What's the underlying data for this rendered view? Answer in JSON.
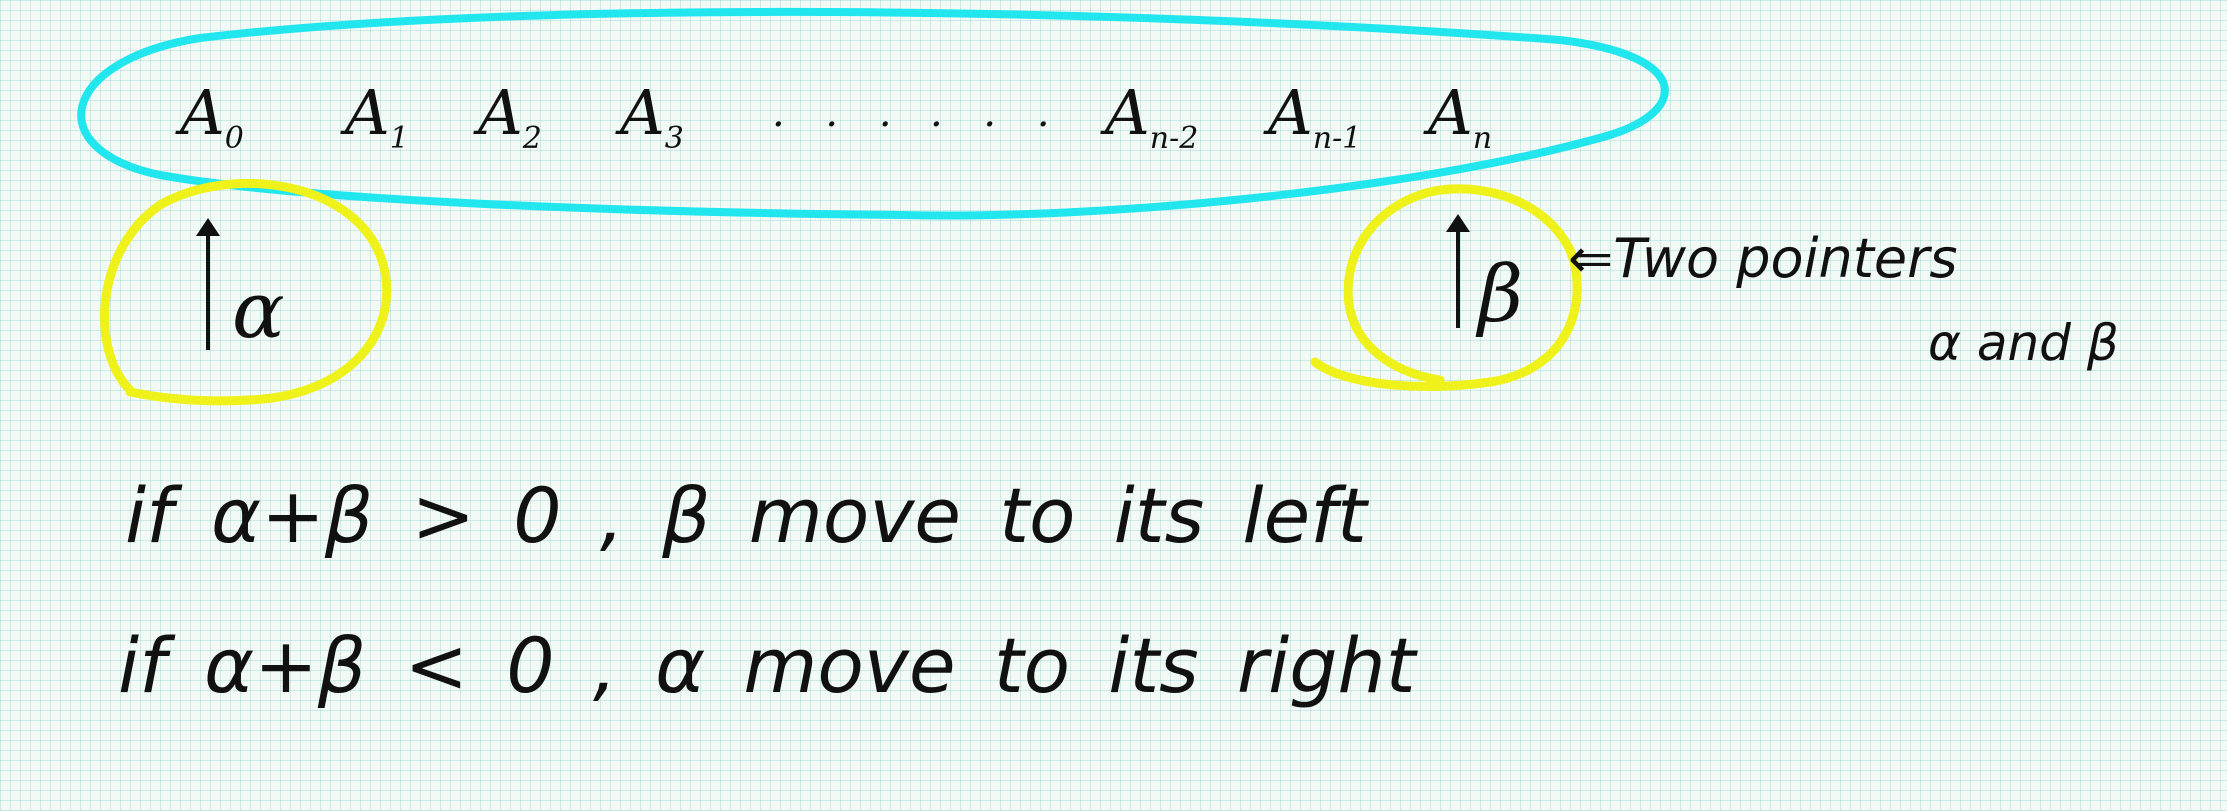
{
  "array": {
    "elements": [
      {
        "base": "A",
        "sub": "0"
      },
      {
        "base": "A",
        "sub": "1"
      },
      {
        "base": "A",
        "sub": "2"
      },
      {
        "base": "A",
        "sub": "3"
      },
      {
        "base": "A",
        "sub": "n-2"
      },
      {
        "base": "A",
        "sub": "n-1"
      },
      {
        "base": "A",
        "sub": "n"
      }
    ],
    "ellipsis_1": "· · ·",
    "ellipsis_2": "· · ·"
  },
  "pointers": {
    "left": "α",
    "right": "β"
  },
  "annotation": {
    "line1": "⇐Two pointers",
    "line2": "α and β"
  },
  "rules": {
    "rule1": "if α+β > 0 , β move to its left",
    "rule2": "if α+β < 0 , α move to its right"
  },
  "colors": {
    "array_loop": "#22e6ee",
    "pointer_circle": "#eef21a",
    "ink": "#111111"
  }
}
